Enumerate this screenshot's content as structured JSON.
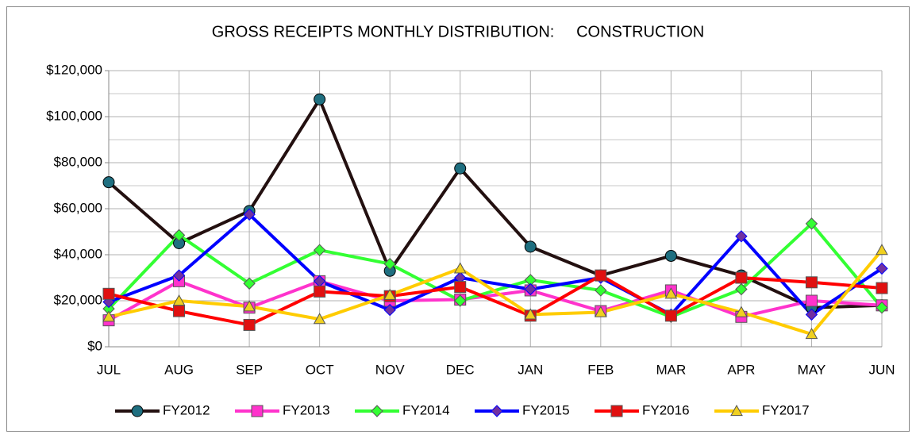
{
  "chart_data": {
    "type": "line",
    "title": "GROSS RECEIPTS MONTHLY DISTRIBUTION:     CONSTRUCTION",
    "categories": [
      "JUL",
      "AUG",
      "SEP",
      "OCT",
      "NOV",
      "DEC",
      "JAN",
      "FEB",
      "MAR",
      "APR",
      "MAY",
      "JUN"
    ],
    "series": [
      {
        "name": "FY2012",
        "color": "#231010",
        "marker": "circle",
        "marker_color": "#1f6f80",
        "values": [
          71500,
          45000,
          59000,
          107500,
          33000,
          77500,
          43500,
          31000,
          39500,
          31000,
          17000,
          18000
        ]
      },
      {
        "name": "FY2013",
        "color": "#ff33cc",
        "marker": "square",
        "marker_color": "#ff33cc",
        "values": [
          11500,
          28500,
          17000,
          28500,
          20000,
          20500,
          24500,
          15500,
          24500,
          13000,
          20000,
          18000
        ]
      },
      {
        "name": "FY2014",
        "color": "#33ff33",
        "marker": "diamond",
        "marker_color": "#33ff33",
        "values": [
          16500,
          48500,
          27500,
          42000,
          36000,
          20000,
          29000,
          24500,
          13000,
          25000,
          53500,
          17000
        ]
      },
      {
        "name": "FY2015",
        "color": "#0000ff",
        "marker": "diamond",
        "marker_color": "#7030a0",
        "values": [
          19500,
          31000,
          57500,
          28500,
          16000,
          30000,
          25000,
          30000,
          14000,
          48000,
          14000,
          34000
        ]
      },
      {
        "name": "FY2016",
        "color": "#ff0000",
        "marker": "square",
        "marker_color": "#e01010",
        "values": [
          23000,
          15500,
          9500,
          24000,
          22000,
          26000,
          13500,
          31000,
          13500,
          30000,
          28000,
          25500
        ]
      },
      {
        "name": "FY2017",
        "color": "#ffcc00",
        "marker": "triangle",
        "marker_color": "#f0d020",
        "values": [
          13000,
          20000,
          17500,
          12000,
          22500,
          34000,
          14000,
          15000,
          23000,
          15000,
          5500,
          42000
        ]
      }
    ],
    "ylim": [
      0,
      120000
    ],
    "yticks": [
      {
        "value": 0,
        "label": "$0"
      },
      {
        "value": 20000,
        "label": "$20,000"
      },
      {
        "value": 40000,
        "label": "$40,000"
      },
      {
        "value": 60000,
        "label": "$60,000"
      },
      {
        "value": 80000,
        "label": "$80,000"
      },
      {
        "value": 100000,
        "label": "$100,000"
      },
      {
        "value": 120000,
        "label": "$120,000"
      }
    ],
    "minor_yticks": [
      10000,
      30000,
      50000,
      70000,
      90000,
      110000
    ],
    "grid": true,
    "legend": "bottom"
  }
}
